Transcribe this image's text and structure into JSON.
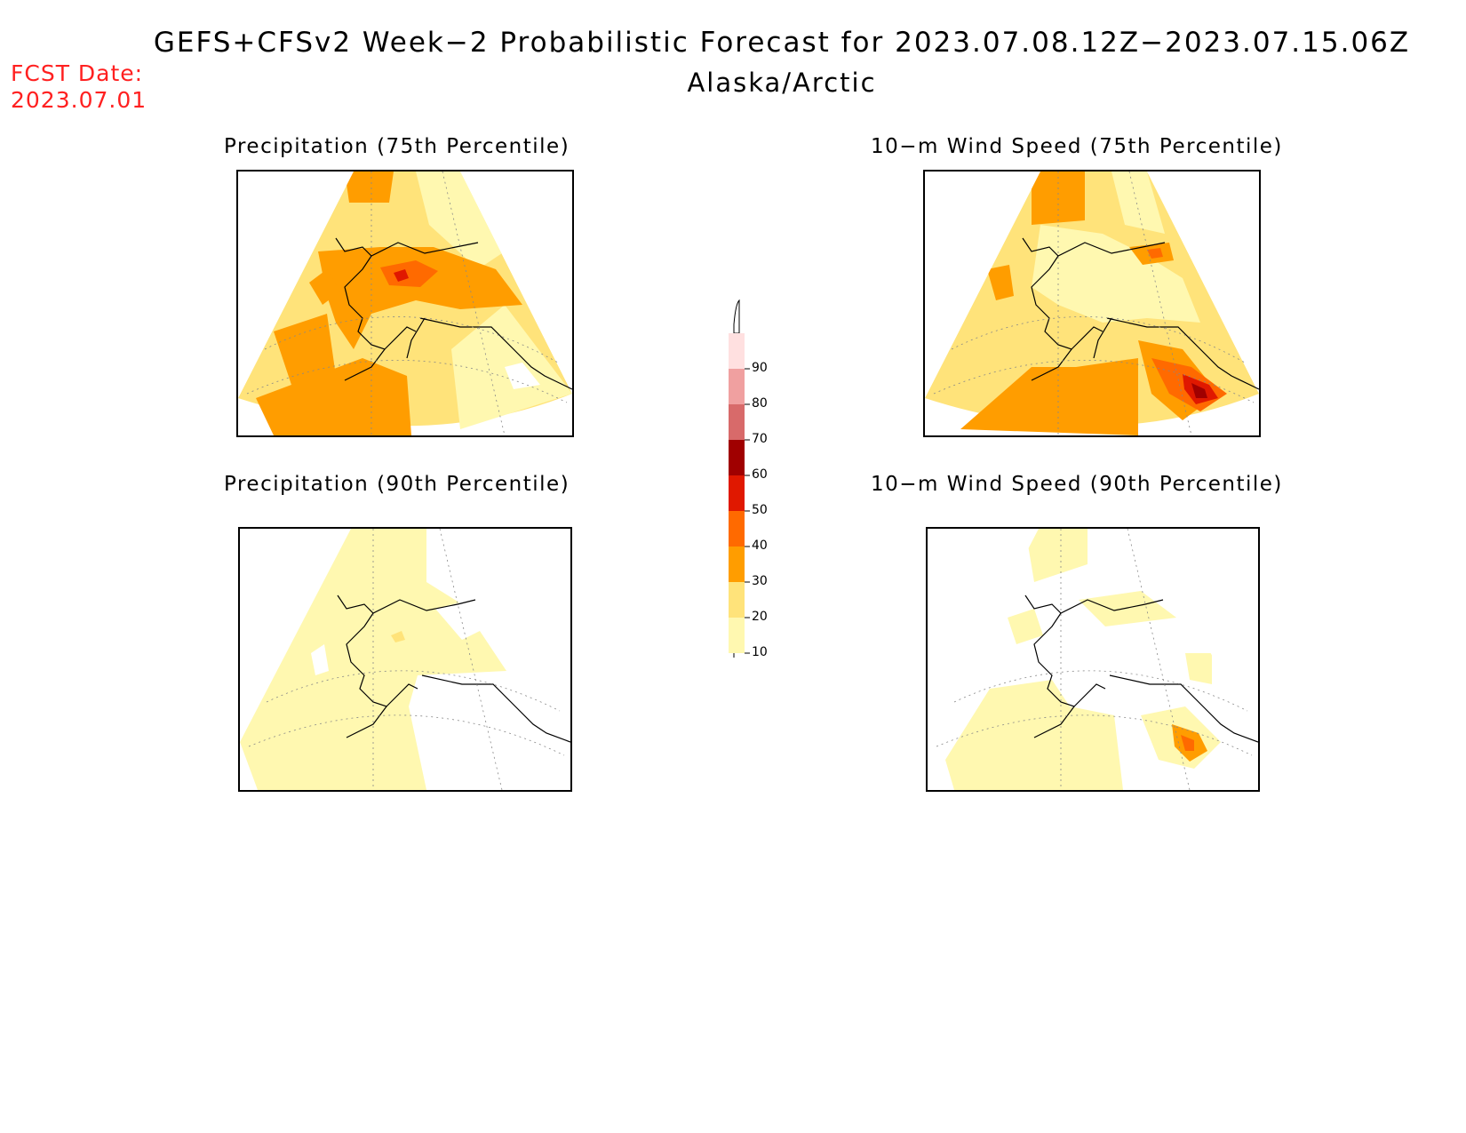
{
  "header": {
    "title": "GEFS+CFSv2 Week−2 Probabilistic Forecast for 2023.07.08.12Z−2023.07.15.06Z",
    "region": "Alaska/Arctic",
    "fcst_label": "FCST Date:",
    "fcst_date": "2023.07.01"
  },
  "panels": [
    {
      "id": "precip75",
      "title": "Precipitation (75th Percentile)"
    },
    {
      "id": "wind75",
      "title": "10−m Wind Speed (75th Percentile)"
    },
    {
      "id": "precip90",
      "title": "Precipitation (90th Percentile)"
    },
    {
      "id": "wind90",
      "title": "10−m Wind Speed (90th Percentile)"
    }
  ],
  "colorbar": {
    "levels": [
      {
        "label": "10",
        "color": "#fff8b0"
      },
      {
        "label": "20",
        "color": "#ffe37a"
      },
      {
        "label": "30",
        "color": "#ff9d00"
      },
      {
        "label": "40",
        "color": "#ff6a00"
      },
      {
        "label": "50",
        "color": "#e01800"
      },
      {
        "label": "60",
        "color": "#a00000"
      },
      {
        "label": "70",
        "color": "#d86a6a"
      },
      {
        "label": "80",
        "color": "#f0a0a0"
      },
      {
        "label": "90",
        "color": "#ffe0e0"
      }
    ]
  },
  "colors": {
    "pale_yellow": "#fff8b0",
    "light_orange": "#ffe37a",
    "orange": "#ff9d00",
    "dark_orange": "#ff6a00",
    "red": "#e01800",
    "dark_red": "#a00000"
  }
}
